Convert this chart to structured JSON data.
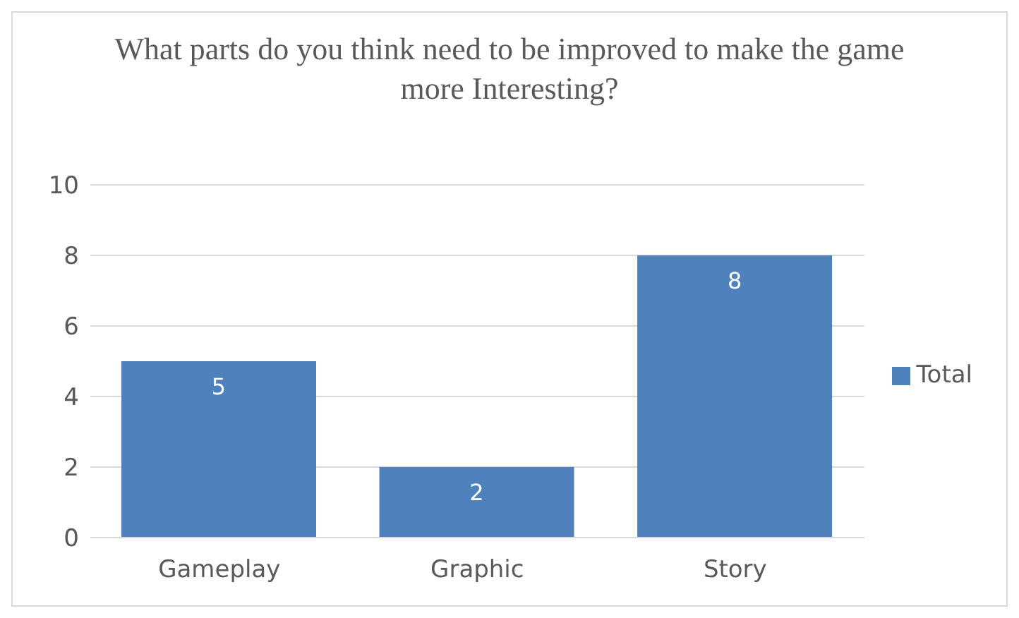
{
  "chart_data": {
    "type": "bar",
    "title": "What parts do you think need to be improved to make the game more Interesting?",
    "categories": [
      "Gameplay",
      "Graphic",
      "Story"
    ],
    "series": [
      {
        "name": "Total",
        "color": "#4f81bd",
        "values": [
          5,
          2,
          8
        ]
      }
    ],
    "ylim": [
      0,
      10
    ],
    "yticks": [
      0,
      2,
      4,
      6,
      8,
      10
    ],
    "grid": "y",
    "legend": "right",
    "data_labels": true
  }
}
